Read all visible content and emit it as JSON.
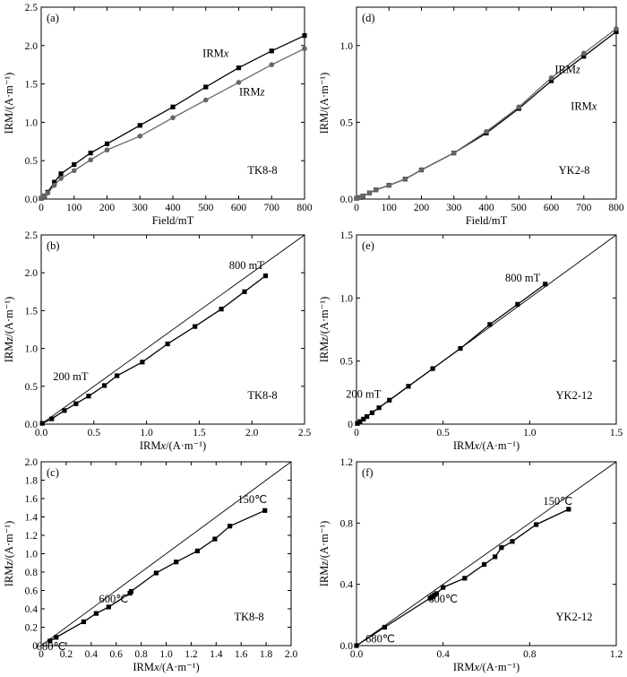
{
  "chart_data": [
    {
      "id": "a",
      "type": "line",
      "panel_label": "(a)",
      "sample": "TK8-8",
      "xlabel": "Field/mT",
      "ylabel": "IRM/(A·m⁻¹)",
      "xlim": [
        0,
        800
      ],
      "ylim": [
        0,
        2.5
      ],
      "xticks": [
        0,
        100,
        200,
        300,
        400,
        500,
        600,
        700,
        800
      ],
      "yticks": [
        0,
        0.5,
        1.0,
        1.5,
        2.0,
        2.5
      ],
      "xtick_labels": [
        "0",
        "100",
        "200",
        "300",
        "400",
        "500",
        "600",
        "700",
        "800"
      ],
      "ytick_labels": [
        "0.0",
        "0.5",
        "1.0",
        "1.5",
        "2.0",
        "2.5"
      ],
      "diagonal": false,
      "series": [
        {
          "name": "IRMx",
          "color": "#000000",
          "marker": "square",
          "label_text": "IRM",
          "label_italic": "x",
          "x": [
            0,
            10,
            20,
            40,
            60,
            100,
            150,
            200,
            300,
            400,
            500,
            600,
            700,
            800
          ],
          "y": [
            0.01,
            0.04,
            0.09,
            0.22,
            0.33,
            0.45,
            0.6,
            0.72,
            0.96,
            1.2,
            1.46,
            1.71,
            1.93,
            2.13
          ]
        },
        {
          "name": "IRMz",
          "color": "#666666",
          "marker": "circle",
          "label_text": "IRM",
          "label_italic": "z",
          "x": [
            0,
            10,
            20,
            40,
            60,
            100,
            150,
            200,
            300,
            400,
            500,
            600,
            700,
            800
          ],
          "y": [
            0.01,
            0.04,
            0.08,
            0.18,
            0.27,
            0.37,
            0.51,
            0.64,
            0.82,
            1.06,
            1.29,
            1.52,
            1.75,
            1.96
          ]
        }
      ],
      "annotations": []
    },
    {
      "id": "d",
      "type": "line",
      "panel_label": "(d)",
      "sample": "YK2-8",
      "xlabel": "Field/mT",
      "ylabel": "IRM/(A·m⁻¹)",
      "xlim": [
        0,
        800
      ],
      "ylim": [
        0,
        1.25
      ],
      "xticks": [
        0,
        100,
        200,
        300,
        400,
        500,
        600,
        700,
        800
      ],
      "yticks": [
        0,
        0.5,
        1.0
      ],
      "xtick_labels": [
        "0",
        "100",
        "200",
        "300",
        "400",
        "500",
        "600",
        "700",
        "800"
      ],
      "ytick_labels": [
        "0.0",
        "0.5",
        "1.0"
      ],
      "diagonal": false,
      "series": [
        {
          "name": "IRMx",
          "color": "#000000",
          "marker": "square",
          "label_text": "IRM",
          "label_italic": "x",
          "x": [
            0,
            10,
            20,
            40,
            60,
            100,
            150,
            200,
            300,
            400,
            500,
            600,
            700,
            800
          ],
          "y": [
            0.005,
            0.01,
            0.02,
            0.04,
            0.06,
            0.09,
            0.13,
            0.19,
            0.3,
            0.43,
            0.59,
            0.77,
            0.93,
            1.09
          ]
        },
        {
          "name": "IRMz",
          "color": "#666666",
          "marker": "circle",
          "label_text": "IRM",
          "label_italic": "z",
          "x": [
            0,
            10,
            20,
            40,
            60,
            100,
            150,
            200,
            300,
            400,
            500,
            600,
            700,
            800
          ],
          "y": [
            0.005,
            0.01,
            0.02,
            0.04,
            0.06,
            0.09,
            0.13,
            0.19,
            0.3,
            0.44,
            0.6,
            0.79,
            0.95,
            1.11
          ]
        }
      ],
      "annotations": []
    },
    {
      "id": "b",
      "type": "line",
      "panel_label": "(b)",
      "sample": "TK8-8",
      "xlabel": "IRMx/(A·m⁻¹)",
      "ylabel": "IRMz/(A·m⁻¹)",
      "xlim": [
        0,
        2.5
      ],
      "ylim": [
        0,
        2.5
      ],
      "xticks": [
        0,
        0.5,
        1.0,
        1.5,
        2.0,
        2.5
      ],
      "yticks": [
        0,
        0.5,
        1.0,
        1.5,
        2.0,
        2.5
      ],
      "xtick_labels": [
        "0.0",
        "0.5",
        "1.0",
        "1.5",
        "2.0",
        "2.5"
      ],
      "ytick_labels": [
        "0.0",
        "0.5",
        "1.0",
        "1.5",
        "2.0",
        "2.5"
      ],
      "diagonal": true,
      "series": [
        {
          "name": "IRMz vs IRMx",
          "color": "#000000",
          "marker": "square",
          "x": [
            0.01,
            0.1,
            0.22,
            0.33,
            0.45,
            0.6,
            0.72,
            0.96,
            1.2,
            1.46,
            1.71,
            1.93,
            2.13
          ],
          "y": [
            0.01,
            0.07,
            0.18,
            0.27,
            0.37,
            0.51,
            0.64,
            0.82,
            1.06,
            1.29,
            1.52,
            1.75,
            1.96
          ]
        }
      ],
      "annotations": [
        {
          "text": "800 mT",
          "x": 1.95,
          "y": 2.05
        },
        {
          "text": "200 mT",
          "x": 0.28,
          "y": 0.58
        }
      ]
    },
    {
      "id": "e",
      "type": "line",
      "panel_label": "(e)",
      "sample": "YK2-12",
      "xlabel": "IRMx/(A·m⁻¹)",
      "ylabel": "IRMz/(A·m⁻¹)",
      "xlim": [
        0,
        1.5
      ],
      "ylim": [
        0,
        1.5
      ],
      "xticks": [
        0,
        0.5,
        1.0,
        1.5
      ],
      "yticks": [
        0,
        0.5,
        1.0,
        1.5
      ],
      "xtick_labels": [
        "0",
        "0.5",
        "1.0",
        "1.5"
      ],
      "ytick_labels": [
        "0",
        "0.5",
        "1.0",
        "1.5"
      ],
      "diagonal": true,
      "series": [
        {
          "name": "IRMz vs IRMx",
          "color": "#000000",
          "marker": "square",
          "x": [
            0.005,
            0.02,
            0.04,
            0.06,
            0.09,
            0.13,
            0.19,
            0.3,
            0.44,
            0.6,
            0.77,
            0.93,
            1.09
          ],
          "y": [
            0.005,
            0.02,
            0.04,
            0.06,
            0.09,
            0.13,
            0.19,
            0.3,
            0.44,
            0.6,
            0.79,
            0.95,
            1.11
          ]
        }
      ],
      "annotations": [
        {
          "text": "800 mT",
          "x": 0.96,
          "y": 1.13
        },
        {
          "text": "200 mT",
          "x": 0.04,
          "y": 0.21
        }
      ]
    },
    {
      "id": "c",
      "type": "line",
      "panel_label": "(c)",
      "sample": "TK8-8",
      "xlabel": "IRMx/(A·m⁻¹)",
      "ylabel": "IRMz/(A·m⁻¹)",
      "xlim": [
        0,
        2.0
      ],
      "ylim": [
        0,
        2.0
      ],
      "xticks": [
        0,
        0.2,
        0.4,
        0.6,
        0.8,
        1.0,
        1.2,
        1.4,
        1.6,
        1.8,
        2.0
      ],
      "yticks": [
        0,
        0.2,
        0.4,
        0.6,
        0.8,
        1.0,
        1.2,
        1.4,
        1.6,
        1.8,
        2.0
      ],
      "xtick_labels": [
        "0",
        "0.2",
        "0.4",
        "0.6",
        "0.8",
        "1.0",
        "1.2",
        "1.4",
        "1.6",
        "1.8",
        "2.0"
      ],
      "ytick_labels": [
        "0",
        "0.2",
        "0.4",
        "0.6",
        "0.8",
        "1.0",
        "1.2",
        "1.4",
        "1.6",
        "1.8",
        "2.0"
      ],
      "diagonal": true,
      "series": [
        {
          "name": "IRMz vs IRMx",
          "color": "#000000",
          "marker": "square",
          "x": [
            0.07,
            0.12,
            0.34,
            0.44,
            0.54,
            0.71,
            0.72,
            0.92,
            1.08,
            1.25,
            1.39,
            1.51,
            1.79
          ],
          "y": [
            0.05,
            0.09,
            0.26,
            0.35,
            0.42,
            0.57,
            0.59,
            0.79,
            0.91,
            1.03,
            1.16,
            1.3,
            1.47
          ]
        }
      ],
      "annotations": [
        {
          "text": "150℃",
          "x": 1.69,
          "y": 1.55
        },
        {
          "text": "600℃",
          "x": 0.58,
          "y": 0.47
        },
        {
          "text": "680℃",
          "x": 0.08,
          "y": -0.05
        }
      ]
    },
    {
      "id": "f",
      "type": "line",
      "panel_label": "(f)",
      "sample": "YK2-12",
      "xlabel": "IRMx/(A·m⁻¹)",
      "ylabel": "IRMz/(A·m⁻¹)",
      "xlim": [
        0,
        1.2
      ],
      "ylim": [
        0,
        1.2
      ],
      "xticks": [
        0,
        0.4,
        0.8,
        1.2
      ],
      "yticks": [
        0,
        0.4,
        0.8,
        1.2
      ],
      "xtick_labels": [
        "0.0",
        "0.4",
        "0.8",
        "1.2"
      ],
      "ytick_labels": [
        "0.0",
        "0.4",
        "0.8",
        "1.2"
      ],
      "diagonal": true,
      "series": [
        {
          "name": "IRMz vs IRMx",
          "color": "#000000",
          "marker": "square",
          "x": [
            0.0,
            0.13,
            0.34,
            0.35,
            0.36,
            0.37,
            0.4,
            0.5,
            0.59,
            0.64,
            0.67,
            0.72,
            0.83,
            0.98
          ],
          "y": [
            0.0,
            0.12,
            0.31,
            0.32,
            0.33,
            0.34,
            0.38,
            0.44,
            0.53,
            0.58,
            0.64,
            0.68,
            0.79,
            0.89
          ]
        }
      ],
      "annotations": [
        {
          "text": "150℃",
          "x": 0.93,
          "y": 0.92
        },
        {
          "text": "600℃",
          "x": 0.4,
          "y": 0.28
        },
        {
          "text": "680℃",
          "x": 0.11,
          "y": 0.02
        }
      ]
    }
  ]
}
